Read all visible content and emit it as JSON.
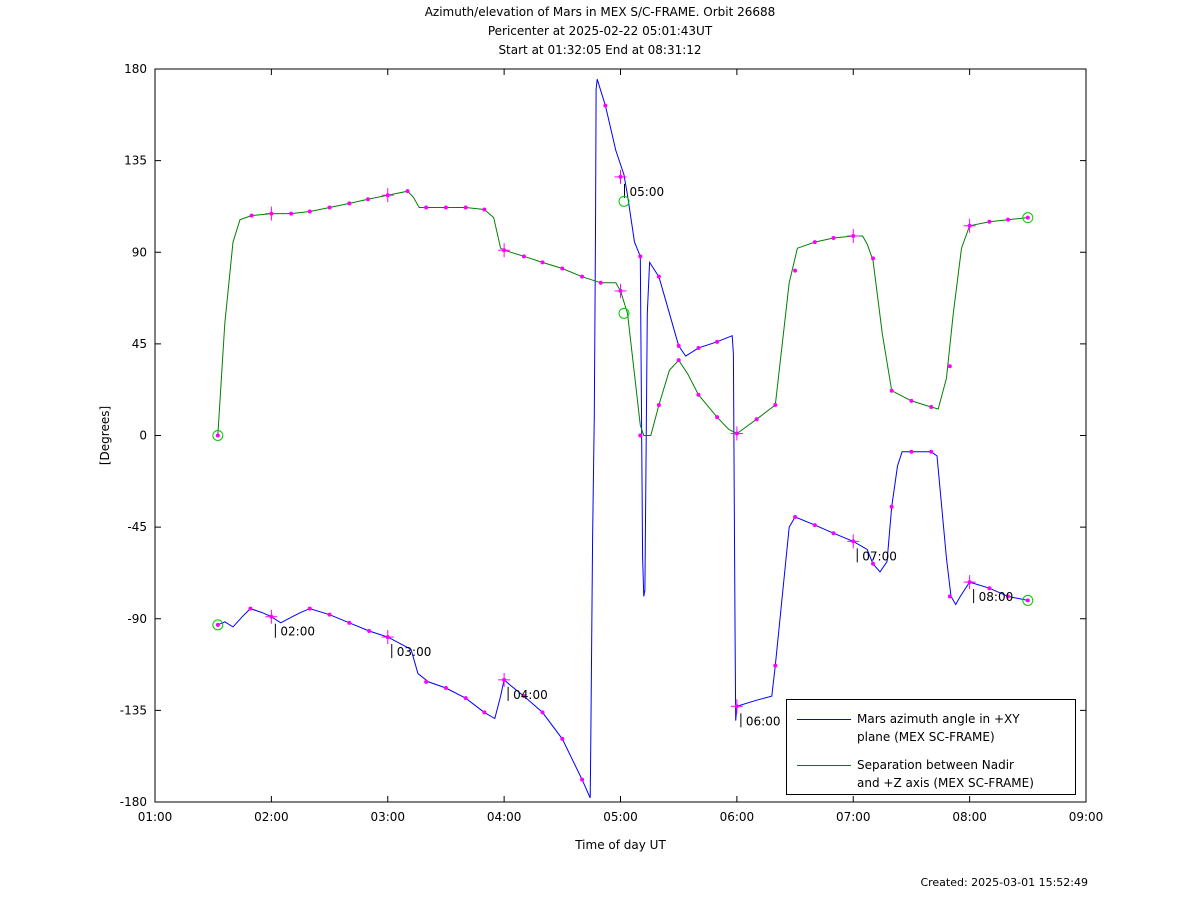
{
  "title": {
    "line1": "Azimuth/elevation of Mars in MEX S/C-FRAME.  Orbit 26688",
    "line2": "Pericenter at 2025-02-22 05:01:43UT",
    "line3": "Start at 01:32:05 End at 08:31:12"
  },
  "footer": {
    "created": "Created: 2025-03-01 15:52:49"
  },
  "chart_data": {
    "type": "line",
    "xlabel": "Time of day UT",
    "ylabel": "[Degrees]",
    "xlim": [
      1.0,
      9.0
    ],
    "ylim": [
      -180,
      180
    ],
    "xticks": [
      1,
      2,
      3,
      4,
      5,
      6,
      7,
      8,
      9
    ],
    "xtick_labels": [
      "01:00",
      "02:00",
      "03:00",
      "04:00",
      "05:00",
      "06:00",
      "07:00",
      "08:00",
      "09:00"
    ],
    "yticks": [
      180,
      135,
      90,
      45,
      0,
      -45,
      -90,
      -135,
      -180
    ],
    "ytick_labels": [
      "180",
      "135",
      "90",
      "45",
      "0",
      "-45",
      "-90",
      "-135",
      "-180"
    ],
    "grid": false,
    "legend_position": "bottom-right",
    "colors": {
      "azimuth": "#0000ff",
      "separation": "#008000",
      "marker": "#ff00ff",
      "endpoint": "#00cc00"
    },
    "series": [
      {
        "key": "azimuth",
        "name": "Mars azimuth angle in +XY plane (MEX SC-FRAME)",
        "legend_lines": [
          "Mars azimuth angle in +XY",
          "plane (MEX SC-FRAME)"
        ],
        "points": [
          [
            1.54,
            -93
          ],
          [
            1.6,
            -91.5
          ],
          [
            1.67,
            -94
          ],
          [
            1.75,
            -89
          ],
          [
            1.82,
            -85
          ],
          [
            1.92,
            -87
          ],
          [
            2.0,
            -89
          ],
          [
            2.08,
            -92
          ],
          [
            2.18,
            -89
          ],
          [
            2.25,
            -87
          ],
          [
            2.33,
            -85
          ],
          [
            2.5,
            -88
          ],
          [
            2.67,
            -92
          ],
          [
            2.84,
            -96
          ],
          [
            3.0,
            -99
          ],
          [
            3.1,
            -102
          ],
          [
            3.2,
            -105
          ],
          [
            3.26,
            -117
          ],
          [
            3.35,
            -121
          ],
          [
            3.5,
            -124
          ],
          [
            3.67,
            -129
          ],
          [
            3.83,
            -136
          ],
          [
            3.92,
            -139
          ],
          [
            3.97,
            -128
          ],
          [
            4.0,
            -120
          ],
          [
            4.06,
            -123
          ],
          [
            4.17,
            -128
          ],
          [
            4.33,
            -136
          ],
          [
            4.5,
            -149
          ],
          [
            4.67,
            -169
          ],
          [
            4.74,
            -178
          ],
          [
            4.745,
            -150
          ],
          [
            4.76,
            -50
          ],
          [
            4.775,
            10
          ],
          [
            4.785,
            100
          ],
          [
            4.79,
            170
          ],
          [
            4.8,
            175
          ],
          [
            4.87,
            162
          ],
          [
            4.96,
            140
          ],
          [
            5.03,
            128
          ],
          [
            5.06,
            118
          ],
          [
            5.12,
            95
          ],
          [
            5.17,
            88
          ],
          [
            5.19,
            -60
          ],
          [
            5.2,
            -79
          ],
          [
            5.21,
            -76
          ],
          [
            5.23,
            60
          ],
          [
            5.25,
            85
          ],
          [
            5.33,
            78
          ],
          [
            5.42,
            60
          ],
          [
            5.5,
            44
          ],
          [
            5.56,
            39
          ],
          [
            5.67,
            43
          ],
          [
            5.83,
            46
          ],
          [
            5.96,
            49
          ],
          [
            5.97,
            40
          ],
          [
            5.985,
            -100
          ],
          [
            5.99,
            -140
          ],
          [
            6.0,
            -133
          ],
          [
            6.17,
            -130
          ],
          [
            6.3,
            -128
          ],
          [
            6.33,
            -113
          ],
          [
            6.45,
            -45
          ],
          [
            6.5,
            -40
          ],
          [
            6.67,
            -44
          ],
          [
            6.83,
            -48
          ],
          [
            7.0,
            -52
          ],
          [
            7.12,
            -56
          ],
          [
            7.17,
            -63
          ],
          [
            7.23,
            -67
          ],
          [
            7.29,
            -62
          ],
          [
            7.33,
            -35
          ],
          [
            7.38,
            -15
          ],
          [
            7.42,
            -8
          ],
          [
            7.55,
            -8
          ],
          [
            7.67,
            -8
          ],
          [
            7.72,
            -10
          ],
          [
            7.8,
            -60
          ],
          [
            7.84,
            -79
          ],
          [
            7.88,
            -83
          ],
          [
            7.92,
            -79
          ],
          [
            8.0,
            -72
          ],
          [
            8.17,
            -75
          ],
          [
            8.33,
            -79
          ],
          [
            8.5,
            -81
          ]
        ],
        "markers": [
          [
            1.54,
            -93
          ],
          [
            1.82,
            -85
          ],
          [
            2.0,
            -89
          ],
          [
            2.33,
            -85
          ],
          [
            2.5,
            -88
          ],
          [
            2.67,
            -92
          ],
          [
            2.84,
            -96
          ],
          [
            3.0,
            -99
          ],
          [
            3.33,
            -121
          ],
          [
            3.5,
            -124
          ],
          [
            3.67,
            -129
          ],
          [
            3.83,
            -136
          ],
          [
            4.0,
            -120
          ],
          [
            4.17,
            -128
          ],
          [
            4.33,
            -136
          ],
          [
            4.5,
            -149
          ],
          [
            4.67,
            -169
          ],
          [
            4.87,
            162
          ],
          [
            5.0,
            127
          ],
          [
            5.17,
            88
          ],
          [
            5.33,
            78
          ],
          [
            5.5,
            44
          ],
          [
            5.67,
            43
          ],
          [
            5.83,
            46
          ],
          [
            6.0,
            -133
          ],
          [
            6.33,
            -113
          ],
          [
            6.5,
            -40
          ],
          [
            6.67,
            -44
          ],
          [
            6.83,
            -48
          ],
          [
            7.0,
            -52
          ],
          [
            7.17,
            -63
          ],
          [
            7.33,
            -35
          ],
          [
            7.5,
            -8
          ],
          [
            7.67,
            -8
          ],
          [
            7.83,
            -79
          ],
          [
            8.0,
            -72
          ],
          [
            8.17,
            -75
          ],
          [
            8.33,
            -79
          ],
          [
            8.5,
            -81
          ]
        ],
        "endpoints": [
          [
            1.54,
            -93
          ],
          [
            8.5,
            -81
          ]
        ]
      },
      {
        "key": "separation",
        "name": "Separation between Nadir and +Z axis (MEX SC-FRAME)",
        "legend_lines": [
          "Separation between Nadir",
          "and +Z axis (MEX SC-FRAME)"
        ],
        "points": [
          [
            1.54,
            0
          ],
          [
            1.6,
            55
          ],
          [
            1.67,
            95
          ],
          [
            1.73,
            106
          ],
          [
            1.83,
            108
          ],
          [
            2.0,
            109
          ],
          [
            2.17,
            109
          ],
          [
            2.33,
            110
          ],
          [
            2.5,
            112
          ],
          [
            2.67,
            114
          ],
          [
            2.83,
            116
          ],
          [
            3.0,
            118
          ],
          [
            3.17,
            120
          ],
          [
            3.22,
            117
          ],
          [
            3.27,
            112
          ],
          [
            3.33,
            112
          ],
          [
            3.5,
            112
          ],
          [
            3.67,
            112
          ],
          [
            3.83,
            111
          ],
          [
            3.91,
            107
          ],
          [
            3.97,
            92
          ],
          [
            4.0,
            91
          ],
          [
            4.17,
            88
          ],
          [
            4.33,
            85
          ],
          [
            4.5,
            82
          ],
          [
            4.67,
            78
          ],
          [
            4.83,
            75
          ],
          [
            4.96,
            75
          ],
          [
            5.0,
            71
          ],
          [
            5.06,
            60
          ],
          [
            5.12,
            30
          ],
          [
            5.17,
            5
          ],
          [
            5.2,
            0
          ],
          [
            5.26,
            0
          ],
          [
            5.33,
            15
          ],
          [
            5.42,
            32
          ],
          [
            5.5,
            37
          ],
          [
            5.58,
            30
          ],
          [
            5.67,
            20
          ],
          [
            5.83,
            9
          ],
          [
            5.93,
            3
          ],
          [
            6.0,
            1
          ],
          [
            6.05,
            3
          ],
          [
            6.17,
            8
          ],
          [
            6.33,
            15
          ],
          [
            6.45,
            75
          ],
          [
            6.52,
            92
          ],
          [
            6.67,
            95
          ],
          [
            6.83,
            97
          ],
          [
            7.0,
            98
          ],
          [
            7.08,
            98
          ],
          [
            7.12,
            94
          ],
          [
            7.17,
            86
          ],
          [
            7.25,
            50
          ],
          [
            7.33,
            22
          ],
          [
            7.5,
            17
          ],
          [
            7.67,
            14
          ],
          [
            7.73,
            13
          ],
          [
            7.8,
            28
          ],
          [
            7.86,
            60
          ],
          [
            7.93,
            92
          ],
          [
            8.0,
            103
          ],
          [
            8.17,
            105
          ],
          [
            8.33,
            106
          ],
          [
            8.5,
            107
          ]
        ],
        "markers": [
          [
            1.54,
            0
          ],
          [
            1.83,
            108
          ],
          [
            2.0,
            109
          ],
          [
            2.17,
            109
          ],
          [
            2.33,
            110
          ],
          [
            2.5,
            112
          ],
          [
            2.67,
            114
          ],
          [
            2.83,
            116
          ],
          [
            3.0,
            118
          ],
          [
            3.17,
            120
          ],
          [
            3.33,
            112
          ],
          [
            3.5,
            112
          ],
          [
            3.67,
            112
          ],
          [
            3.83,
            111
          ],
          [
            4.0,
            91
          ],
          [
            4.17,
            88
          ],
          [
            4.33,
            85
          ],
          [
            4.5,
            82
          ],
          [
            4.67,
            78
          ],
          [
            4.83,
            75
          ],
          [
            5.0,
            71
          ],
          [
            5.17,
            0
          ],
          [
            5.33,
            15
          ],
          [
            5.5,
            37
          ],
          [
            5.67,
            20
          ],
          [
            5.83,
            9
          ],
          [
            6.0,
            1
          ],
          [
            6.17,
            8
          ],
          [
            6.33,
            15
          ],
          [
            6.5,
            81
          ],
          [
            6.67,
            95
          ],
          [
            6.83,
            97
          ],
          [
            7.0,
            98
          ],
          [
            7.17,
            87
          ],
          [
            7.33,
            22
          ],
          [
            7.5,
            17
          ],
          [
            7.67,
            14
          ],
          [
            7.83,
            34
          ],
          [
            8.0,
            103
          ],
          [
            8.17,
            105
          ],
          [
            8.33,
            106
          ],
          [
            8.5,
            107
          ]
        ],
        "endpoints": [
          [
            1.54,
            0
          ],
          [
            8.5,
            107
          ]
        ]
      }
    ],
    "hour_marks": [
      {
        "x": 2.0,
        "y": -89,
        "label": "02:00"
      },
      {
        "x": 3.0,
        "y": -99,
        "label": "03:00"
      },
      {
        "x": 4.0,
        "y": -120,
        "label": "04:00"
      },
      {
        "x": 5.0,
        "y": 127,
        "label": "05:00"
      },
      {
        "x": 6.0,
        "y": -133,
        "label": "06:00"
      },
      {
        "x": 7.0,
        "y": -52,
        "label": "07:00"
      },
      {
        "x": 8.0,
        "y": -72,
        "label": "08:00"
      }
    ],
    "separation_hour_marks": [
      {
        "x": 2.0,
        "y": 109
      },
      {
        "x": 3.0,
        "y": 118
      },
      {
        "x": 4.0,
        "y": 91
      },
      {
        "x": 5.0,
        "y": 71
      },
      {
        "x": 6.0,
        "y": 1
      },
      {
        "x": 7.0,
        "y": 98
      },
      {
        "x": 8.0,
        "y": 103
      }
    ],
    "pericenter_marks": [
      {
        "x": 5.03,
        "y": 115
      },
      {
        "x": 5.03,
        "y": 60
      }
    ]
  }
}
